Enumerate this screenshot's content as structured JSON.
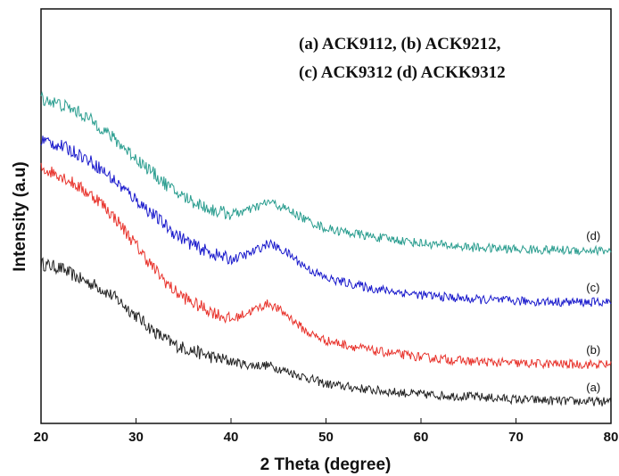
{
  "chart_data": {
    "type": "line",
    "title": "",
    "xlabel": "2 Theta (degree)",
    "ylabel": "Intensity (a.u)",
    "xlim": [
      20,
      80
    ],
    "ylim": [
      0,
      100
    ],
    "x_ticks": [
      "20",
      "30",
      "40",
      "50",
      "60",
      "70",
      "80"
    ],
    "y_ticks_shown": false,
    "grid": false,
    "legend_lines": [
      "(a)  ACK9112, (b) ACK9212,",
      "(c) ACK9312 (d) ACKK9312"
    ],
    "legend_position": "top-right",
    "series": [
      {
        "label": "(a)",
        "color": "#222222",
        "x": [
          20,
          22,
          24,
          26,
          28,
          30,
          32,
          34,
          36,
          38,
          40,
          42,
          44,
          46,
          48,
          50,
          55,
          60,
          65,
          70,
          75,
          80
        ],
        "y": [
          38.5,
          37.5,
          35,
          33,
          30,
          26,
          22,
          19,
          17.5,
          16,
          15,
          14,
          14,
          12.5,
          11,
          9.5,
          8,
          7,
          6.5,
          5.8,
          5.4,
          5.2
        ]
      },
      {
        "label": "(b)",
        "color": "#e8332c",
        "x": [
          20,
          22,
          24,
          26,
          28,
          30,
          32,
          34,
          36,
          38,
          40,
          42,
          44,
          46,
          48,
          50,
          55,
          60,
          65,
          70,
          75,
          80
        ],
        "y": [
          61.5,
          60,
          57,
          54,
          49,
          43,
          37,
          32,
          29,
          27,
          25,
          27,
          29,
          26,
          22,
          20,
          17.5,
          16,
          15,
          14.5,
          14.3,
          14.2
        ]
      },
      {
        "label": "(c)",
        "color": "#1a1acc",
        "x": [
          20,
          22,
          24,
          26,
          28,
          30,
          32,
          34,
          36,
          38,
          40,
          42,
          44,
          46,
          48,
          50,
          55,
          60,
          65,
          70,
          75,
          80
        ],
        "y": [
          68.5,
          67,
          65,
          62,
          58,
          54,
          50,
          46,
          43,
          41,
          39.5,
          41,
          43.5,
          41,
          37.5,
          35,
          32.5,
          31,
          30,
          29.5,
          29.3,
          29.2
        ]
      },
      {
        "label": "(d)",
        "color": "#2a9d8f",
        "x": [
          20,
          22,
          24,
          26,
          28,
          30,
          32,
          34,
          36,
          38,
          40,
          42,
          44,
          46,
          48,
          50,
          55,
          60,
          65,
          70,
          75,
          80
        ],
        "y": [
          78.5,
          77,
          75,
          72,
          68,
          64,
          60,
          56,
          53.5,
          51.5,
          50.5,
          51.5,
          53.5,
          51.5,
          49,
          47,
          45,
          43.5,
          42.5,
          42,
          41.8,
          41.7
        ]
      }
    ]
  }
}
